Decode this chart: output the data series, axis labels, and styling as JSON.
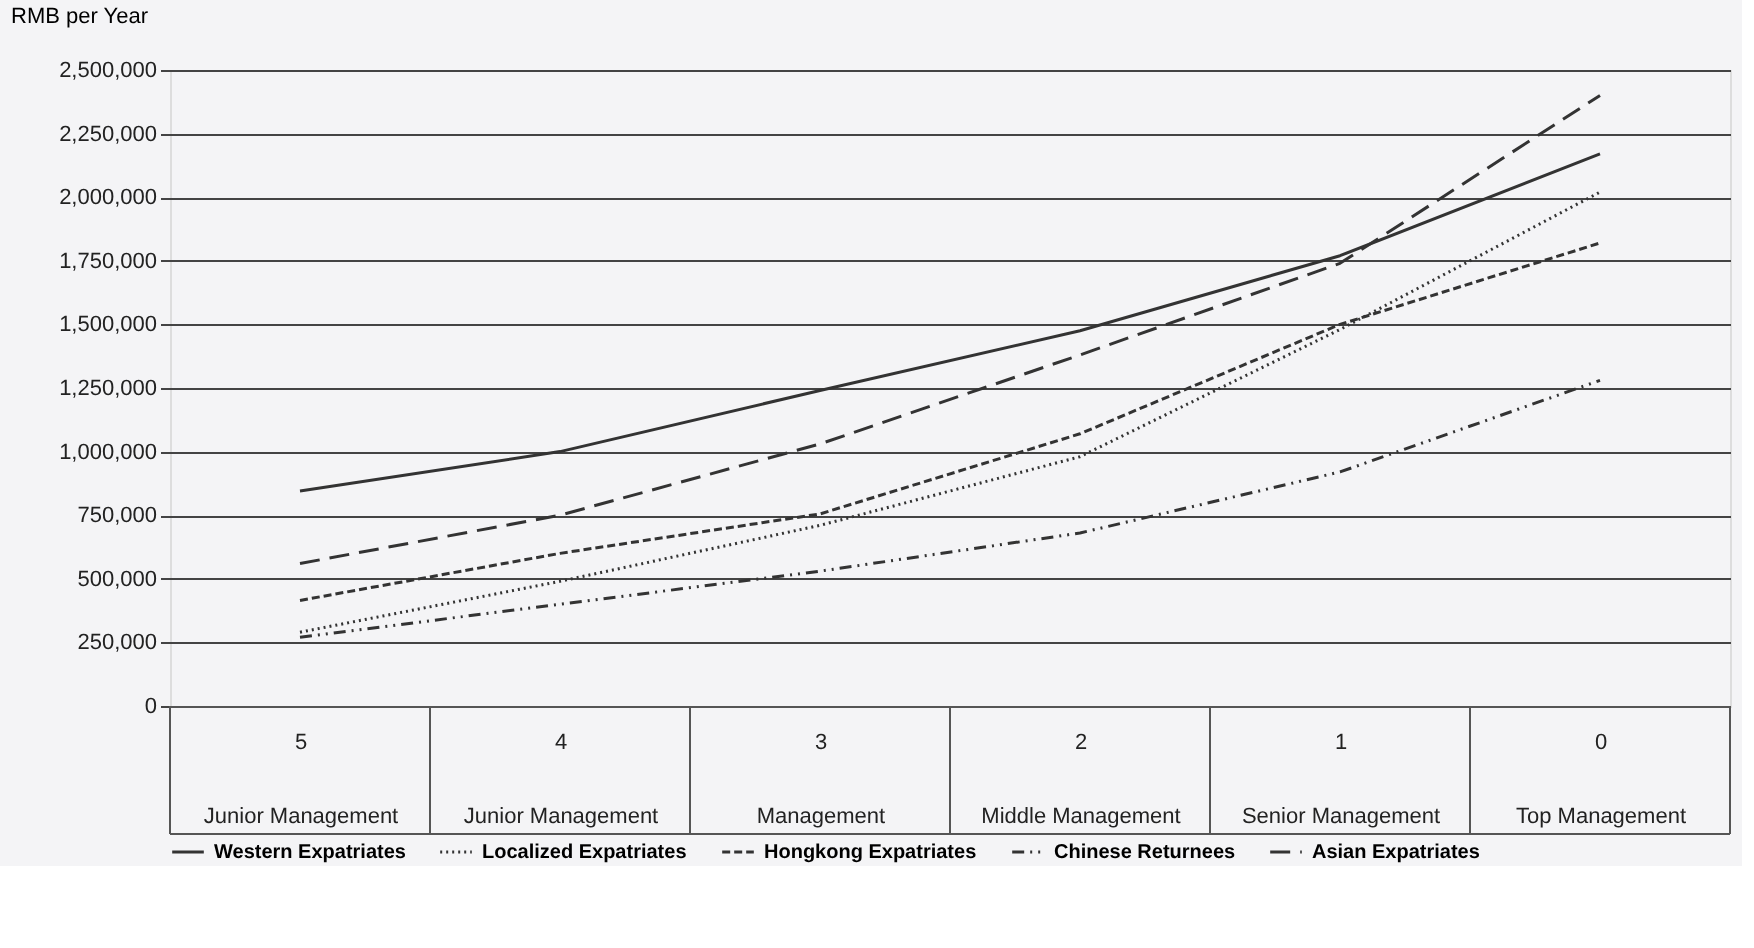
{
  "chart_data": {
    "type": "line",
    "ylabel": "RMB per Year",
    "categories": [
      "5\nJunior Management",
      "4\nJunior Management",
      "3\nManagement",
      "2\nMiddle Management",
      "1\nSenior Management",
      "0\nTop Management"
    ],
    "series": [
      {
        "name": "Western Expatriates",
        "color": "#333333",
        "line_style": "solid",
        "values": [
          845000,
          1000000,
          1240000,
          1475000,
          1770000,
          2170000
        ]
      },
      {
        "name": "Localized Expatriates",
        "color": "#333333",
        "line_style": "dotted",
        "values": [
          290000,
          490000,
          710000,
          980000,
          1480000,
          2020000
        ]
      },
      {
        "name": "Hongkong Expatriates",
        "color": "#333333",
        "line_style": "dashed",
        "values": [
          415000,
          600000,
          755000,
          1070000,
          1500000,
          1820000
        ]
      },
      {
        "name": "Chinese Returnees",
        "color": "#333333",
        "line_style": "dashdot",
        "values": [
          270000,
          400000,
          530000,
          680000,
          920000,
          1280000
        ]
      },
      {
        "name": "Asian Expatriates",
        "color": "#333333",
        "line_style": "longdash",
        "values": [
          560000,
          750000,
          1030000,
          1380000,
          1740000,
          2400000
        ]
      }
    ],
    "ylim": [
      0,
      2500000
    ],
    "yticks": [
      0,
      {
        "value": 250000,
        "label": "250,000"
      },
      {
        "value": 500000,
        "label": "500,000"
      },
      {
        "value": 750000,
        "label": "750,000"
      },
      {
        "value": 1000000,
        "label": "1,000,000"
      },
      {
        "value": 1250000,
        "label": "1,250,000"
      },
      {
        "value": 1500000,
        "label": "1,500,000"
      },
      {
        "value": 1750000,
        "label": "1,750,000"
      },
      {
        "value": 2000000,
        "label": "2,000,000"
      },
      {
        "value": 2250000,
        "label": "2,250,000"
      },
      {
        "value": 2500000,
        "label": "2,500,000"
      }
    ],
    "grid": "y",
    "legend": "bottom"
  }
}
